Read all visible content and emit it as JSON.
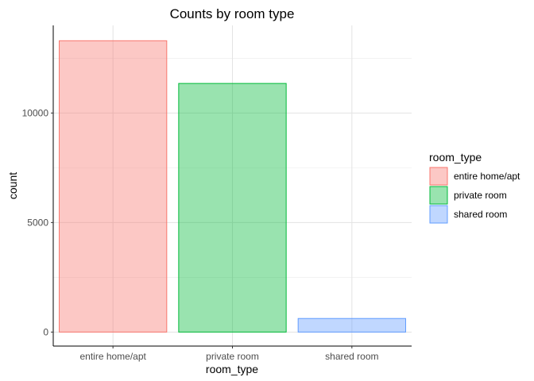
{
  "chart_data": {
    "type": "bar",
    "title": "Counts by room type",
    "xlabel": "room_type",
    "ylabel": "count",
    "categories": [
      "entire home/apt",
      "private room",
      "shared room"
    ],
    "values": [
      13300,
      11350,
      620
    ],
    "ylim": [
      -640,
      14000
    ],
    "yticks": [
      0,
      5000,
      10000
    ],
    "yticks_labels": [
      "0",
      "5000",
      "10000"
    ],
    "grid": true,
    "legend": {
      "title": "room_type",
      "placement": "right",
      "entries": [
        "entire home/apt",
        "private room",
        "shared room"
      ]
    },
    "fill_colors": [
      "#F8766D",
      "#00BA38",
      "#619CFF"
    ],
    "fill_opacity": 0.4
  }
}
